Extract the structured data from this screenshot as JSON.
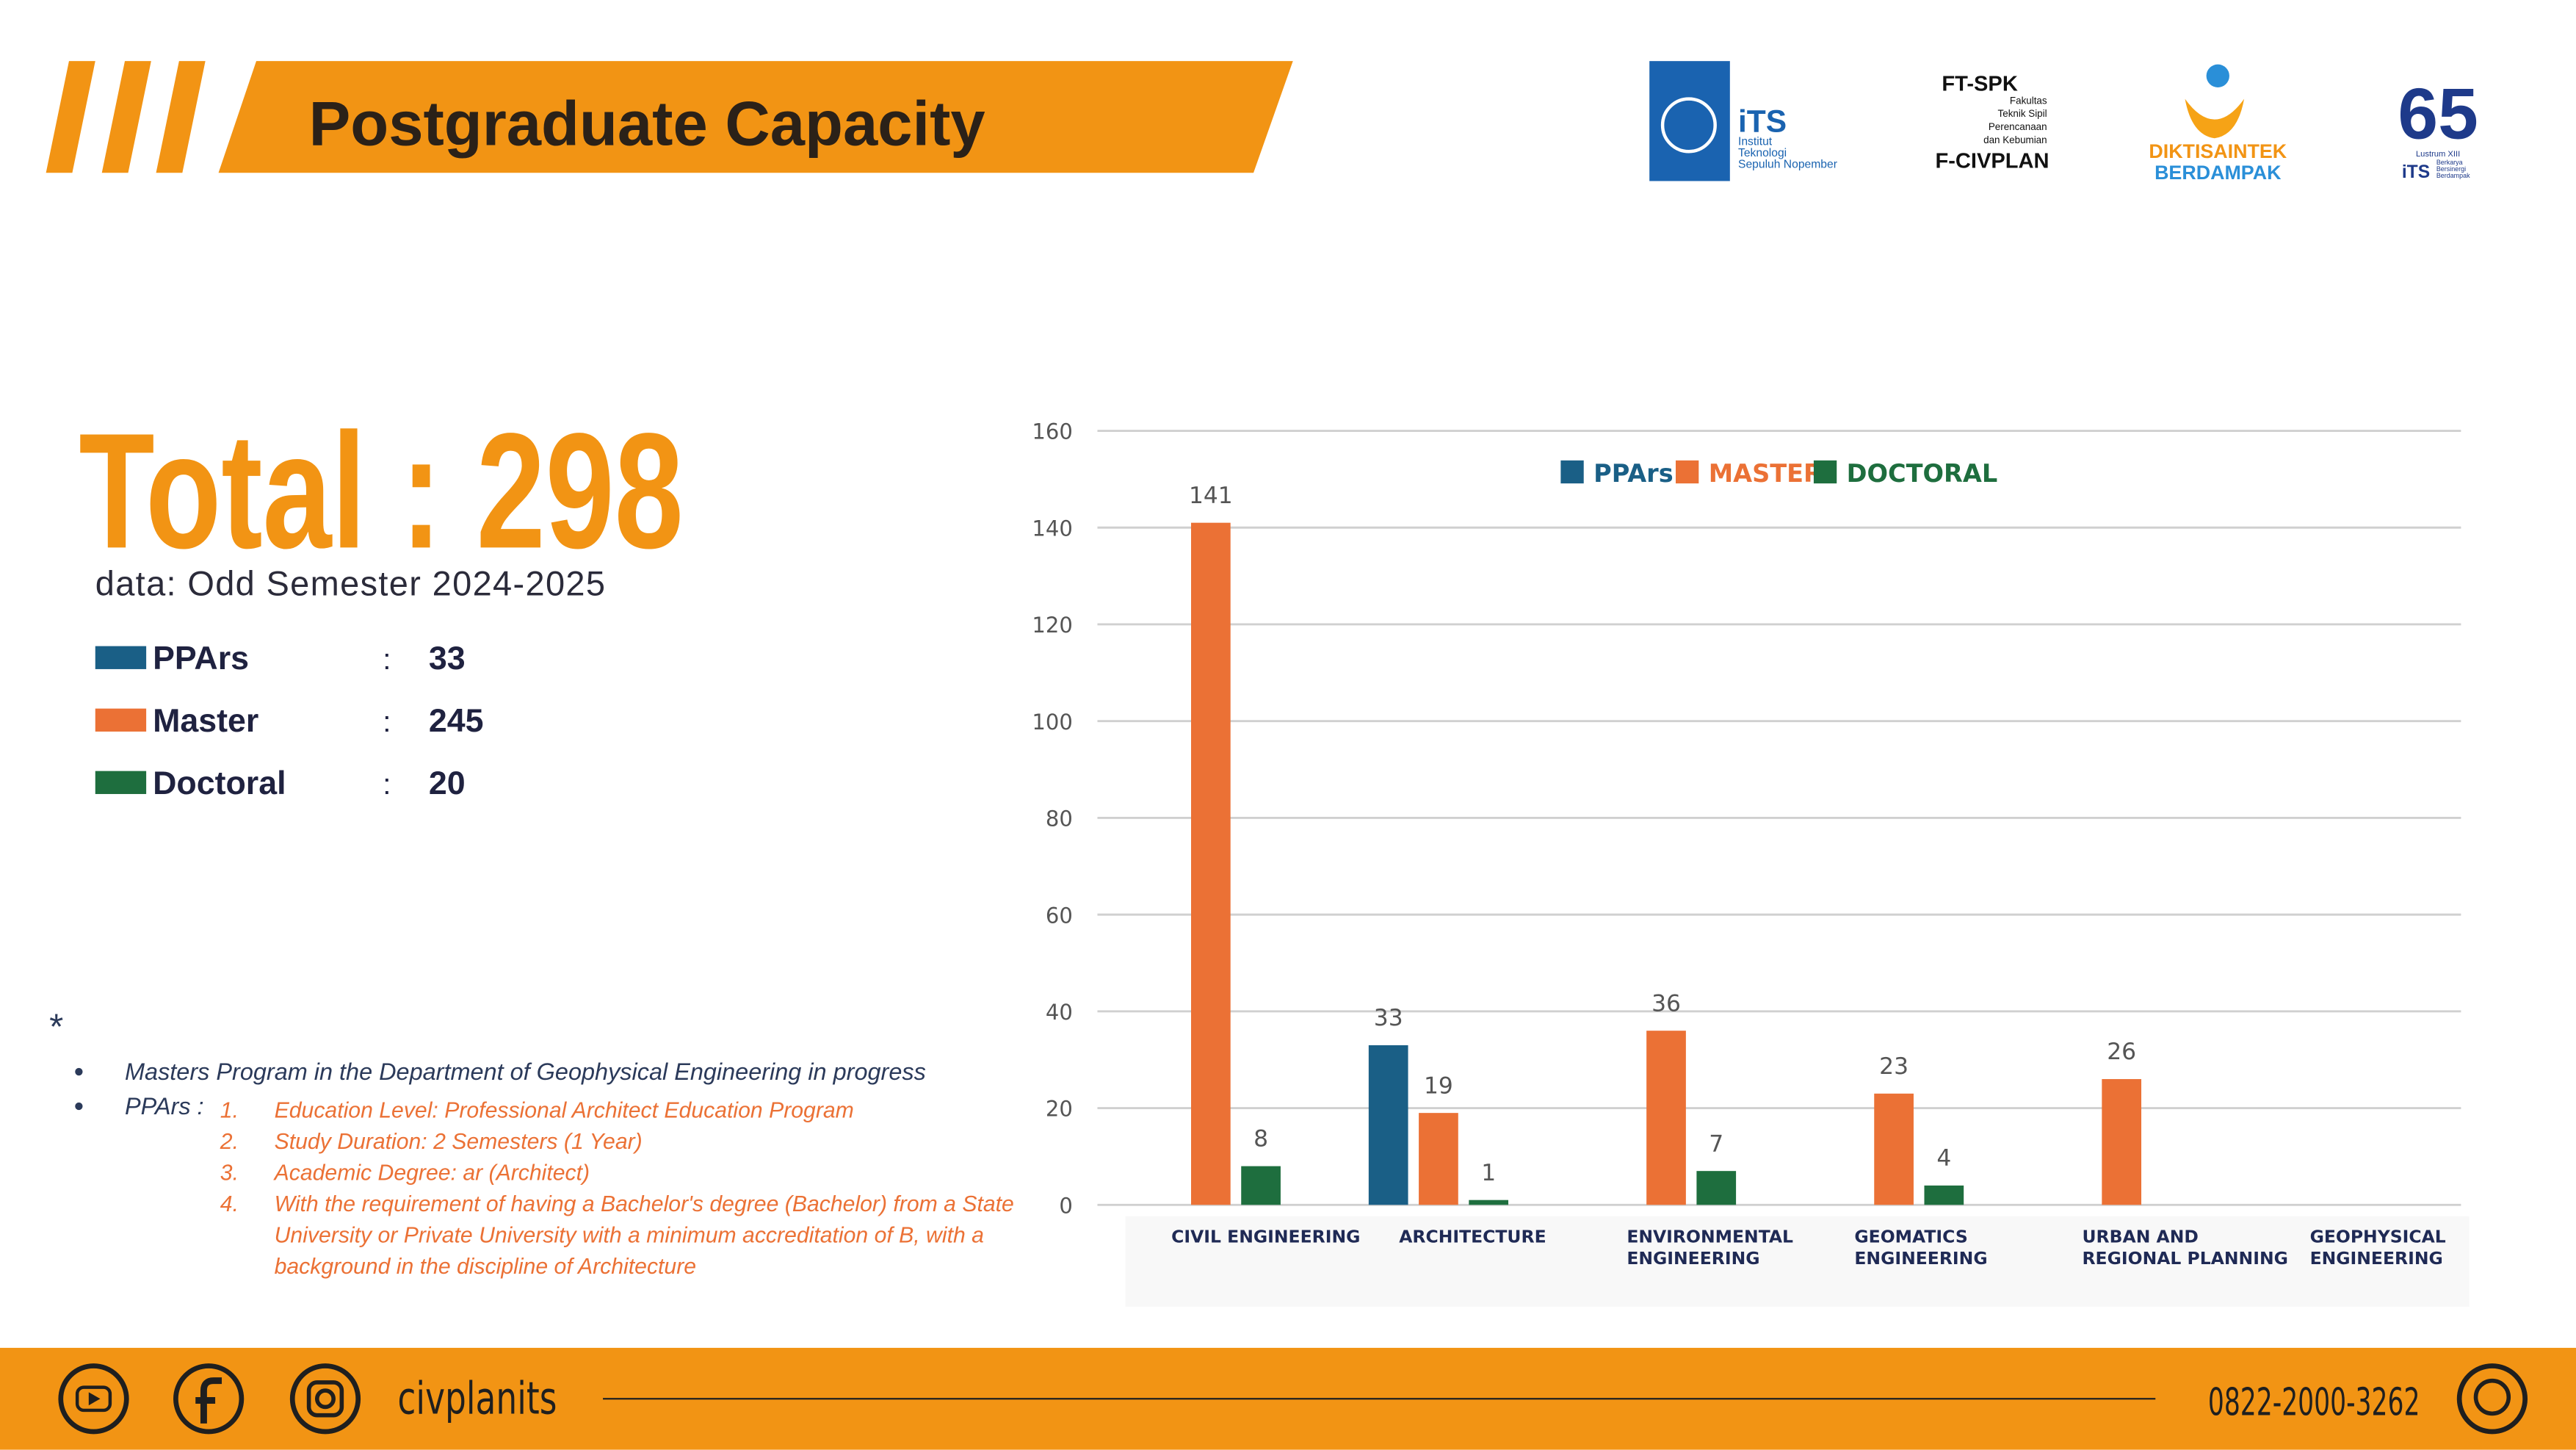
{
  "header": {
    "title": "Postgraduate Capacity"
  },
  "logos": {
    "its": {
      "mark": "iTS",
      "lines": [
        "Institut",
        "Teknologi",
        "Sepuluh Nopember"
      ]
    },
    "ftspk": {
      "mark": "FT-SPK",
      "lines": [
        "Fakultas",
        "Teknik Sipil",
        "Perencanaan",
        "dan Kebumian"
      ],
      "name": "F-CIVPLAN"
    },
    "diktisaintek": {
      "line1": "DIKTISAINTEK",
      "line2": "BERDAMPAK"
    },
    "lustrum": {
      "number": "65",
      "caption": "Lustrum XIII",
      "mark": "iTS",
      "lines": [
        "Berkarya",
        "Bersinergi",
        "Berdampak"
      ]
    }
  },
  "summary": {
    "total": "Total : 298",
    "note": "data: Odd Semester 2024-2025",
    "separator": ":",
    "rows": [
      {
        "label": "PPArs",
        "value": 33,
        "color": "#1a5f86"
      },
      {
        "label": "Master",
        "value": 245,
        "color": "#eb7135"
      },
      {
        "label": "Doctoral",
        "value": 20,
        "color": "#1e6e3e"
      }
    ]
  },
  "notes": {
    "marker": "*",
    "bullets": [
      "Masters Program in the Department of Geophysical Engineering in progress",
      "PPArs :"
    ],
    "items": [
      {
        "number": "1.",
        "lines": [
          "Education Level: Professional Architect Education Program"
        ]
      },
      {
        "number": "2.",
        "lines": [
          "Study Duration: 2 Semesters (1 Year)"
        ]
      },
      {
        "number": "3.",
        "lines": [
          "Academic Degree: ar (Architect)"
        ]
      },
      {
        "number": "4.",
        "lines": [
          "With the requirement of having a Bachelor's degree (Bachelor) from a State",
          "University or Private University with a minimum accreditation of B, with a",
          "background in the discipline of Architecture"
        ]
      }
    ]
  },
  "chart_data": {
    "type": "bar",
    "categories": [
      "CIVIL ENGINEERING",
      "ARCHITECTURE",
      "ENVIRONMENTAL\nENGINEERING",
      "GEOMATICS\nENGINEERING",
      "URBAN AND\nREGIONAL PLANNING",
      "GEOPHYSICAL\nENGINEERING"
    ],
    "series": [
      {
        "name": "PPArs",
        "color": "#1a5f86",
        "values": [
          null,
          33,
          null,
          null,
          null,
          null
        ]
      },
      {
        "name": "MASTER",
        "color": "#eb7135",
        "values": [
          141,
          19,
          36,
          23,
          26,
          null
        ]
      },
      {
        "name": "DOCTORAL",
        "color": "#1e6e3e",
        "values": [
          8,
          1,
          7,
          4,
          null,
          null
        ]
      }
    ],
    "ylim": [
      0,
      160
    ],
    "yticks": [
      0,
      20,
      40,
      60,
      80,
      100,
      120,
      140,
      160
    ],
    "grid": true,
    "legend": "top"
  },
  "footer": {
    "handle": "civplanits",
    "phone": "0822-2000-3262"
  }
}
